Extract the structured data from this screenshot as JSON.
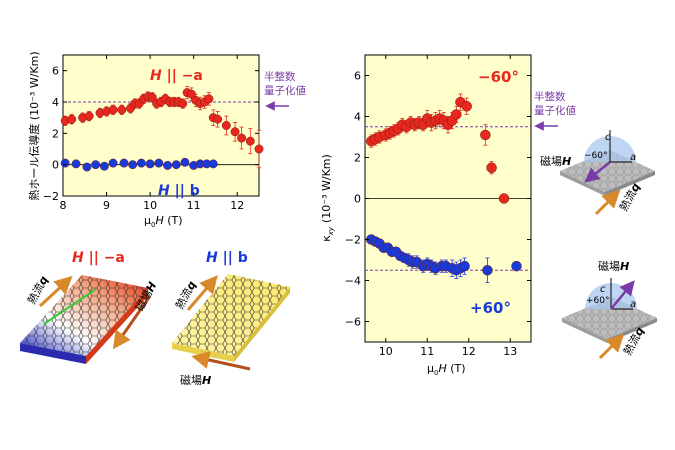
{
  "chart_data": [
    {
      "type": "scatter",
      "panel": "left",
      "ylabel": "熱ホール伝導度 (10⁻³ W/Km)",
      "xlabel_mu": "μ",
      "xlabel_sub": "0",
      "xlabel_H": "H",
      "xlabel_unit": " (T)",
      "xlim": [
        8,
        12.5
      ],
      "ylim": [
        -2,
        7
      ],
      "xticks": [
        "8",
        "9",
        "10",
        "11",
        "12"
      ],
      "yticks": [
        "−2",
        "0",
        "2",
        "4",
        "6"
      ],
      "grid": false,
      "quantized_value": 4.0,
      "quantized_label": [
        "半整数",
        "量子化値"
      ],
      "series": [
        {
          "name": "H || −a",
          "color": "#e8281e",
          "points": [
            [
              8.05,
              2.8
            ],
            [
              8.2,
              2.9
            ],
            [
              8.45,
              3.0
            ],
            [
              8.6,
              3.1
            ],
            [
              8.85,
              3.3
            ],
            [
              9.0,
              3.4
            ],
            [
              9.15,
              3.5
            ],
            [
              9.35,
              3.5
            ],
            [
              9.55,
              3.6
            ],
            [
              9.65,
              3.9
            ],
            [
              9.75,
              3.9
            ],
            [
              9.85,
              4.2
            ],
            [
              9.95,
              4.35
            ],
            [
              10.05,
              4.3
            ],
            [
              10.15,
              3.9
            ],
            [
              10.25,
              4.0
            ],
            [
              10.35,
              4.2
            ],
            [
              10.45,
              4.0
            ],
            [
              10.55,
              4.0
            ],
            [
              10.65,
              4.0
            ],
            [
              10.75,
              3.9
            ],
            [
              10.85,
              4.6
            ],
            [
              10.95,
              4.5
            ],
            [
              11.05,
              4.1
            ],
            [
              11.15,
              3.9
            ],
            [
              11.25,
              4.0
            ],
            [
              11.35,
              4.2
            ],
            [
              11.45,
              3.0
            ],
            [
              11.55,
              2.9
            ],
            [
              11.75,
              2.5
            ],
            [
              11.95,
              2.1
            ],
            [
              12.1,
              1.7
            ],
            [
              12.3,
              1.5
            ],
            [
              12.5,
              1.0
            ]
          ],
          "errors": [
            0.3,
            0.3,
            0.3,
            0.3,
            0.3,
            0.3,
            0.3,
            0.3,
            0.3,
            0.3,
            0.3,
            0.3,
            0.3,
            0.3,
            0.3,
            0.3,
            0.3,
            0.3,
            0.3,
            0.3,
            0.3,
            0.4,
            0.4,
            0.4,
            0.4,
            0.4,
            0.4,
            0.5,
            0.5,
            0.6,
            0.6,
            0.7,
            0.8,
            1.2
          ]
        },
        {
          "name": "H || b",
          "color": "#1a3ad8",
          "points": [
            [
              8.05,
              0.1
            ],
            [
              8.3,
              0.05
            ],
            [
              8.55,
              -0.15
            ],
            [
              8.75,
              0.0
            ],
            [
              8.95,
              -0.1
            ],
            [
              9.15,
              0.1
            ],
            [
              9.4,
              0.1
            ],
            [
              9.6,
              0.0
            ],
            [
              9.8,
              0.1
            ],
            [
              10.0,
              0.05
            ],
            [
              10.2,
              0.1
            ],
            [
              10.4,
              -0.05
            ],
            [
              10.6,
              0.0
            ],
            [
              10.8,
              0.15
            ],
            [
              11.0,
              -0.05
            ],
            [
              11.15,
              0.05
            ],
            [
              11.3,
              0.05
            ],
            [
              11.45,
              0.05
            ]
          ],
          "errors": [
            0.15,
            0.15,
            0.15,
            0.15,
            0.15,
            0.15,
            0.15,
            0.15,
            0.15,
            0.15,
            0.15,
            0.15,
            0.15,
            0.15,
            0.2,
            0.2,
            0.2,
            0.2
          ]
        }
      ]
    },
    {
      "type": "scatter",
      "panel": "right",
      "ylabel_kappa": "κ",
      "ylabel_sub": "xy",
      "ylabel_unit": "(10⁻³ W/Km)",
      "xlabel_mu": "μ",
      "xlabel_sub": "0",
      "xlabel_H": "H",
      "xlabel_unit": " (T)",
      "xlim": [
        9.5,
        13.5
      ],
      "ylim": [
        -7,
        7
      ],
      "xticks": [
        "10",
        "11",
        "12",
        "13"
      ],
      "yticks": [
        "−6",
        "−4",
        "−2",
        "0",
        "2",
        "4",
        "6"
      ],
      "grid": false,
      "quantized_values": [
        3.5,
        -3.5
      ],
      "quantized_label": [
        "半整数",
        "量子化値"
      ],
      "series": [
        {
          "name": "−60°",
          "color": "#e8281e",
          "points": [
            [
              9.65,
              2.8
            ],
            [
              9.75,
              2.9
            ],
            [
              9.85,
              3.0
            ],
            [
              10.0,
              3.1
            ],
            [
              10.1,
              3.2
            ],
            [
              10.2,
              3.3
            ],
            [
              10.3,
              3.4
            ],
            [
              10.4,
              3.6
            ],
            [
              10.5,
              3.5
            ],
            [
              10.6,
              3.7
            ],
            [
              10.7,
              3.6
            ],
            [
              10.8,
              3.7
            ],
            [
              10.9,
              3.6
            ],
            [
              11.0,
              3.9
            ],
            [
              11.1,
              3.7
            ],
            [
              11.2,
              3.8
            ],
            [
              11.3,
              3.9
            ],
            [
              11.4,
              3.8
            ],
            [
              11.5,
              3.6
            ],
            [
              11.6,
              3.8
            ],
            [
              11.7,
              4.1
            ],
            [
              11.8,
              4.7
            ],
            [
              11.95,
              4.5
            ],
            [
              12.4,
              3.1
            ],
            [
              12.55,
              1.5
            ],
            [
              12.85,
              0.0
            ]
          ],
          "errors": [
            0.3,
            0.3,
            0.3,
            0.3,
            0.3,
            0.3,
            0.3,
            0.3,
            0.3,
            0.3,
            0.3,
            0.3,
            0.3,
            0.4,
            0.4,
            0.4,
            0.4,
            0.4,
            0.4,
            0.4,
            0.4,
            0.4,
            0.4,
            0.5,
            0.3,
            0.2
          ]
        },
        {
          "name": "+60°",
          "color": "#1a3ad8",
          "points": [
            [
              9.65,
              -2.0
            ],
            [
              9.75,
              -2.1
            ],
            [
              9.85,
              -2.2
            ],
            [
              9.95,
              -2.4
            ],
            [
              10.05,
              -2.4
            ],
            [
              10.15,
              -2.6
            ],
            [
              10.25,
              -2.6
            ],
            [
              10.35,
              -2.8
            ],
            [
              10.45,
              -2.9
            ],
            [
              10.55,
              -3.0
            ],
            [
              10.65,
              -3.1
            ],
            [
              10.75,
              -3.1
            ],
            [
              10.9,
              -3.3
            ],
            [
              11.0,
              -3.2
            ],
            [
              11.1,
              -3.3
            ],
            [
              11.2,
              -3.4
            ],
            [
              11.35,
              -3.3
            ],
            [
              11.45,
              -3.3
            ],
            [
              11.6,
              -3.4
            ],
            [
              11.7,
              -3.5
            ],
            [
              11.8,
              -3.4
            ],
            [
              11.9,
              -3.3
            ],
            [
              12.45,
              -3.5
            ],
            [
              13.15,
              -3.3
            ]
          ],
          "errors": [
            0.2,
            0.2,
            0.2,
            0.2,
            0.2,
            0.2,
            0.2,
            0.2,
            0.2,
            0.3,
            0.3,
            0.3,
            0.3,
            0.3,
            0.3,
            0.3,
            0.3,
            0.3,
            0.4,
            0.4,
            0.4,
            0.4,
            0.6,
            0.2
          ]
        }
      ]
    }
  ],
  "left_series_labels": {
    "neg_a": {
      "H": "H",
      "rest": " || −a"
    },
    "b": {
      "H": "H",
      "rest": " || b"
    }
  },
  "right_series_labels": {
    "neg60": "−60°",
    "pos60": "+60°"
  },
  "bottom": {
    "left_title": {
      "H": "H",
      "rest": " || −a"
    },
    "right_title": {
      "H": "H",
      "rest": " || b"
    },
    "heat_flow": "熱流",
    "q": "q",
    "magnetic_field": "磁場",
    "H": "H"
  },
  "insets": {
    "top": {
      "c": "c",
      "a": "a",
      "angle": "−60°",
      "field_label": "磁場",
      "H": "H",
      "heat_label": "熱流",
      "q": "q"
    },
    "bottom": {
      "c": "c",
      "a": "a",
      "angle": "+60°",
      "field_label": "磁場",
      "H": "H",
      "heat_label": "熱流",
      "q": "q"
    }
  },
  "colors": {
    "plot_bg": "#ffffcc",
    "red": "#e8281e",
    "blue": "#1a3ad8",
    "purple": "#7a3ba8",
    "orange": "#d88a2a"
  }
}
